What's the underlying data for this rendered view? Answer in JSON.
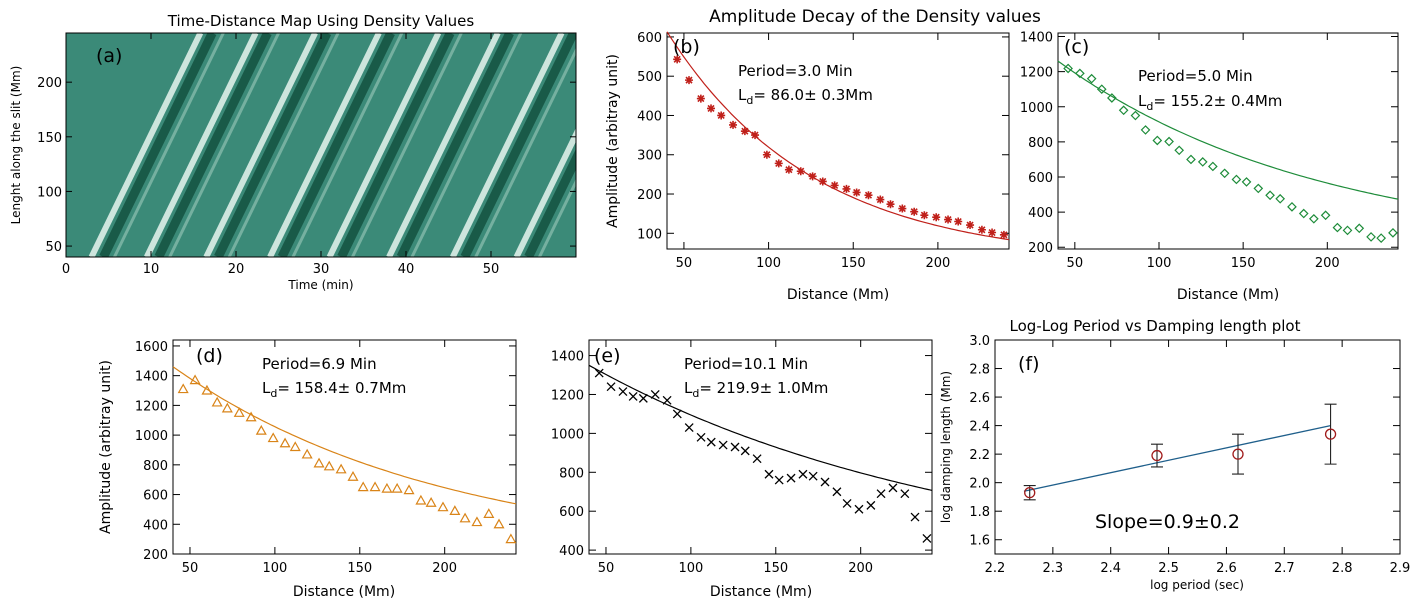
{
  "title_top_left": "Time-Distance Map Using Density Values",
  "title_top_right": "Amplitude Decay of the Density values",
  "title_bottom_right": "Log-Log Period vs Damping length plot",
  "chart_data": [
    {
      "panel": "(a)",
      "type": "heatmap",
      "title": "Time-Distance Map Using Density Values",
      "xlabel": "Time (min)",
      "ylabel": "Lenght along the slit (Mm)",
      "xlim": [
        0,
        60
      ],
      "ylim": [
        40,
        245
      ],
      "xticks": [
        0,
        10,
        20,
        30,
        40,
        50
      ],
      "yticks": [
        50,
        100,
        150,
        200
      ],
      "colormap": [
        "#0f4a38",
        "#3b8a78",
        "#e8f4ef"
      ],
      "bright_ridges_start_time": [
        3,
        9.5,
        16.5,
        24,
        31,
        38,
        45.5,
        53
      ],
      "ridge_slope_mm_per_min": 16
    },
    {
      "panel": "(b)",
      "type": "scatter",
      "xlabel": "Distance (Mm)",
      "ylabel": "Amplitude (arbitray unit)",
      "xlim": [
        40,
        242
      ],
      "ylim": [
        60,
        610
      ],
      "xticks": [
        50,
        100,
        150,
        200
      ],
      "yticks": [
        100,
        200,
        300,
        400,
        500,
        600
      ],
      "marker": "asterisk",
      "color": "#c0201a",
      "annotation_period": "Period=3.0 Min",
      "annotation_ld_prefix": "L",
      "annotation_ld_sub": "d",
      "annotation_ld_value": "=  86.0± 0.3Mm",
      "fit": {
        "A0": 552,
        "x0": 45,
        "Ld": 86.0,
        "offset": 28
      },
      "x": [
        46,
        53,
        60,
        66,
        72,
        79,
        86,
        92,
        99,
        106,
        112,
        119,
        126,
        132,
        139,
        146,
        152,
        159,
        166,
        172,
        179,
        186,
        192,
        199,
        206,
        212,
        219,
        226,
        232,
        239
      ],
      "y": [
        543,
        490,
        443,
        418,
        400,
        376,
        360,
        350,
        300,
        278,
        262,
        258,
        245,
        232,
        222,
        213,
        204,
        197,
        186,
        174,
        163,
        155,
        146,
        141,
        135,
        130,
        121,
        109,
        102,
        96
      ]
    },
    {
      "panel": "(c)",
      "type": "scatter",
      "xlabel": "Distance (Mm)",
      "xlim": [
        40,
        242
      ],
      "ylim": [
        190,
        1420
      ],
      "xticks": [
        50,
        100,
        150,
        200
      ],
      "yticks": [
        200,
        400,
        600,
        800,
        1000,
        1200,
        1400
      ],
      "marker": "diamond",
      "color": "#1e8c3a",
      "annotation_period": "Period=5.0 Min",
      "annotation_ld_prefix": "L",
      "annotation_ld_sub": "d",
      "annotation_ld_value": "=  155.2± 0.4Mm",
      "fit": {
        "A0": 1080,
        "x0": 40,
        "Ld": 155.2,
        "offset": 180
      },
      "x": [
        46,
        53,
        60,
        66,
        72,
        79,
        86,
        92,
        99,
        106,
        112,
        119,
        126,
        132,
        139,
        146,
        152,
        159,
        166,
        172,
        179,
        186,
        192,
        199,
        206,
        212,
        219,
        226,
        232,
        239
      ],
      "y": [
        1218,
        1190,
        1160,
        1100,
        1050,
        980,
        950,
        868,
        808,
        802,
        752,
        700,
        686,
        660,
        621,
        586,
        572,
        535,
        496,
        476,
        430,
        392,
        362,
        382,
        312,
        296,
        308,
        259,
        252,
        282
      ]
    },
    {
      "panel": "(d)",
      "type": "scatter",
      "xlabel": "Distance (Mm)",
      "ylabel": "Amplitude (arbitray unit)",
      "xlim": [
        40,
        242
      ],
      "ylim": [
        200,
        1640
      ],
      "xticks": [
        50,
        100,
        150,
        200
      ],
      "yticks": [
        200,
        400,
        600,
        800,
        1000,
        1200,
        1400,
        1600
      ],
      "marker": "triangle",
      "color": "#d98418",
      "annotation_period": "Period=6.9 Min",
      "annotation_ld_prefix": "L",
      "annotation_ld_sub": "d",
      "annotation_ld_value": "=  158.4± 0.7Mm",
      "fit": {
        "A0": 1280,
        "x0": 40,
        "Ld": 158.4,
        "offset": 180
      },
      "x": [
        46,
        53,
        60,
        66,
        72,
        79,
        86,
        92,
        99,
        106,
        112,
        119,
        126,
        132,
        139,
        146,
        152,
        159,
        166,
        172,
        179,
        186,
        192,
        199,
        206,
        212,
        219,
        226,
        232,
        239
      ],
      "y": [
        1310,
        1370,
        1300,
        1220,
        1180,
        1150,
        1120,
        1030,
        980,
        945,
        920,
        870,
        810,
        790,
        770,
        720,
        650,
        650,
        640,
        640,
        630,
        560,
        545,
        515,
        490,
        440,
        415,
        470,
        400,
        300
      ]
    },
    {
      "panel": "(e)",
      "type": "scatter",
      "xlabel": "Distance (Mm)",
      "xlim": [
        40,
        242
      ],
      "ylim": [
        380,
        1480
      ],
      "xticks": [
        50,
        100,
        150,
        200
      ],
      "yticks": [
        400,
        600,
        800,
        1000,
        1200,
        1400
      ],
      "marker": "x",
      "color": "#000000",
      "annotation_period": "Period=10.1 Min",
      "annotation_ld_prefix": "L",
      "annotation_ld_sub": "d",
      "annotation_ld_value": "=  219.9± 1.0Mm",
      "fit": {
        "A0": 1070,
        "x0": 40,
        "Ld": 219.9,
        "offset": 280
      },
      "x": [
        46,
        53,
        60,
        66,
        72,
        79,
        86,
        92,
        99,
        106,
        112,
        119,
        126,
        132,
        139,
        146,
        152,
        159,
        166,
        172,
        179,
        186,
        192,
        199,
        206,
        212,
        219,
        226,
        232,
        239
      ],
      "y": [
        1310,
        1240,
        1215,
        1190,
        1180,
        1200,
        1170,
        1100,
        1030,
        980,
        955,
        940,
        930,
        910,
        870,
        790,
        760,
        770,
        790,
        780,
        750,
        700,
        640,
        610,
        630,
        690,
        720,
        690,
        570,
        460
      ]
    },
    {
      "panel": "(f)",
      "type": "scatter",
      "title": "Log-Log Period vs Damping length plot",
      "xlabel": "log period (sec)",
      "ylabel": "log damping length (Mm)",
      "xlim": [
        2.2,
        2.9
      ],
      "ylim": [
        1.5,
        3.0
      ],
      "xticks": [
        2.2,
        2.3,
        2.4,
        2.5,
        2.6,
        2.7,
        2.8,
        2.9
      ],
      "yticks": [
        1.6,
        1.8,
        2.0,
        2.2,
        2.4,
        2.6,
        2.8,
        3.0
      ],
      "marker": "open-circle",
      "color": "#a01a1a",
      "line_color": "#1f5f8b",
      "annotation": "Slope=0.9±0.2",
      "x": [
        2.26,
        2.48,
        2.62,
        2.78
      ],
      "y": [
        1.93,
        2.19,
        2.2,
        2.34
      ],
      "yerr": [
        0.05,
        0.08,
        0.14,
        0.21
      ],
      "fit_line": {
        "x": [
          2.25,
          2.78
        ],
        "y": [
          1.94,
          2.4
        ]
      }
    }
  ]
}
